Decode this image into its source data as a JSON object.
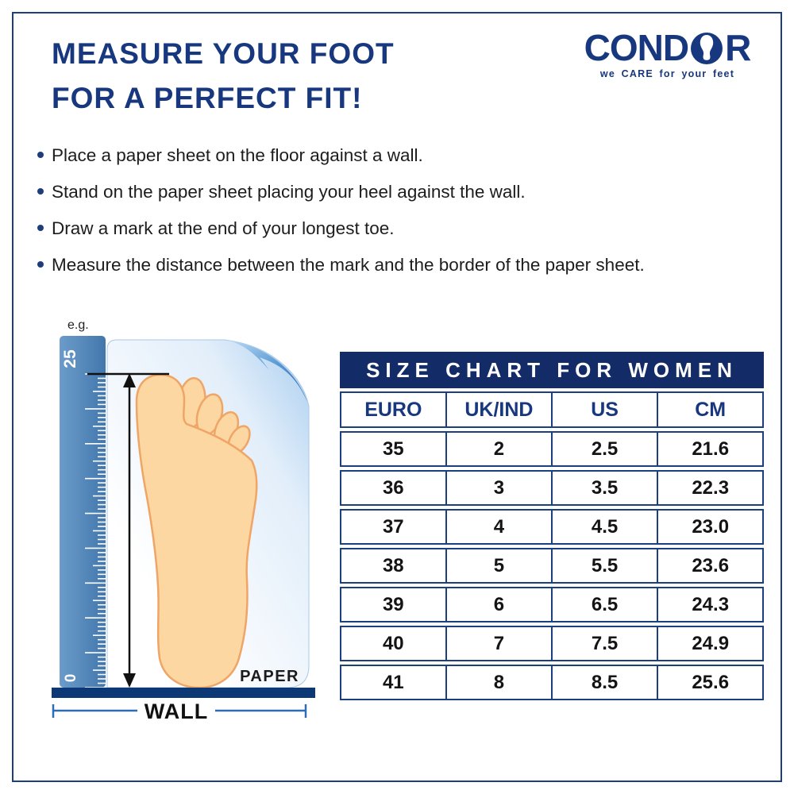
{
  "header": {
    "title_line1": "MEASURE YOUR FOOT",
    "title_line2": "FOR A PERFECT FIT!"
  },
  "logo": {
    "brand_left": "COND",
    "brand_right": "R",
    "tagline": "we CARE for your feet"
  },
  "instructions": [
    "Place a paper sheet on the floor against a wall.",
    "Stand on the paper sheet placing your heel against the wall.",
    "Draw a mark at the end of your longest toe.",
    "Measure the distance between the mark and the border of the paper sheet."
  ],
  "illustration": {
    "example_label": "e.g.",
    "ruler_max_label": "25",
    "ruler_min_label": "0",
    "paper_label": "PAPER",
    "wall_label": "WALL"
  },
  "size_chart": {
    "title": "SIZE CHART FOR WOMEN",
    "columns": [
      "EURO",
      "UK/IND",
      "US",
      "CM"
    ],
    "rows": [
      [
        "35",
        "2",
        "2.5",
        "21.6"
      ],
      [
        "36",
        "3",
        "3.5",
        "22.3"
      ],
      [
        "37",
        "4",
        "4.5",
        "23.0"
      ],
      [
        "38",
        "5",
        "5.5",
        "23.6"
      ],
      [
        "39",
        "6",
        "6.5",
        "24.3"
      ],
      [
        "40",
        "7",
        "7.5",
        "24.9"
      ],
      [
        "41",
        "8",
        "8.5",
        "25.6"
      ]
    ]
  },
  "colors": {
    "navy_text": "#17377e",
    "band_navy": "#132c67",
    "table_border": "#1b3f7f",
    "ruler_blue": "#4a80b5",
    "floor_bar_navy": "#0c3875",
    "foot_fill": "#fcd7a1",
    "foot_outline": "#efa566",
    "wall_line_blue": "#2e6cb3"
  }
}
